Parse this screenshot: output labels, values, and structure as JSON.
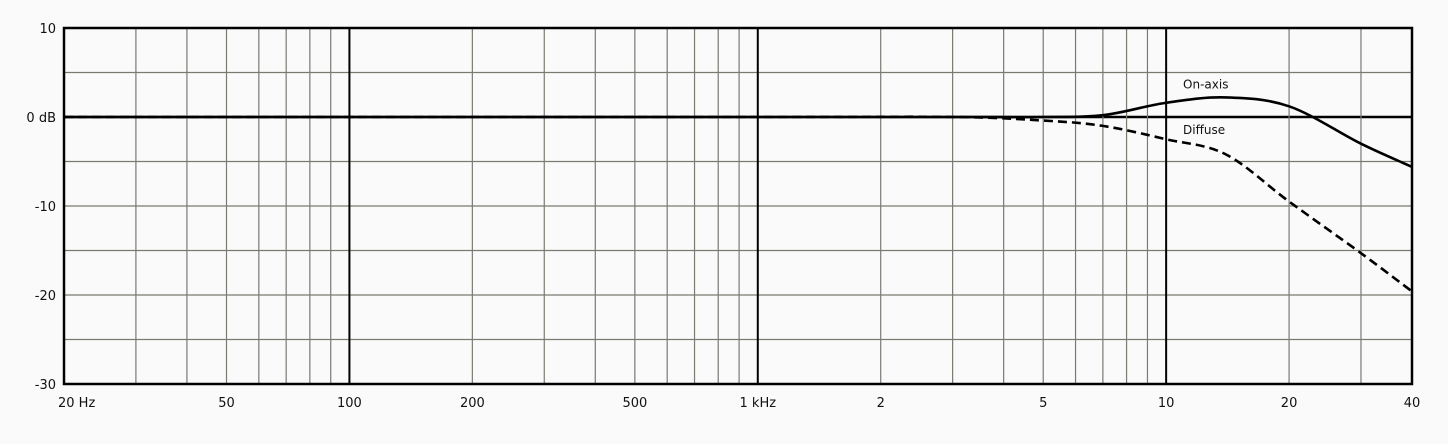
{
  "chart_data": {
    "type": "line",
    "title": "",
    "xlabel": "",
    "ylabel": "",
    "x_scale": "log",
    "xlim": [
      20,
      40000
    ],
    "ylim": [
      -30,
      10
    ],
    "grid": true,
    "x_ticks": [
      {
        "value": 20,
        "label": "20 Hz"
      },
      {
        "value": 50,
        "label": "50"
      },
      {
        "value": 100,
        "label": "100"
      },
      {
        "value": 200,
        "label": "200"
      },
      {
        "value": 500,
        "label": "500"
      },
      {
        "value": 1000,
        "label": "1 kHz"
      },
      {
        "value": 2000,
        "label": "2"
      },
      {
        "value": 5000,
        "label": "5"
      },
      {
        "value": 10000,
        "label": "10"
      },
      {
        "value": 20000,
        "label": "20"
      },
      {
        "value": 40000,
        "label": "40"
      }
    ],
    "y_ticks": [
      {
        "value": 10,
        "label": "10"
      },
      {
        "value": 0,
        "label": "0 dB"
      },
      {
        "value": -10,
        "label": "-10"
      },
      {
        "value": -20,
        "label": "-20"
      },
      {
        "value": -30,
        "label": "-30"
      }
    ],
    "series": [
      {
        "name": "On-axis",
        "style": "solid",
        "x": [
          20,
          1000,
          3000,
          5000,
          7000,
          10000,
          14000,
          20000,
          30000,
          40000
        ],
        "y": [
          0,
          0,
          0,
          0,
          0.2,
          1.6,
          2.2,
          1.2,
          -3.0,
          -5.6
        ]
      },
      {
        "name": "Diffuse",
        "style": "dashed",
        "x": [
          20,
          1000,
          3000,
          5000,
          7000,
          10000,
          14000,
          20000,
          30000,
          40000
        ],
        "y": [
          0,
          0,
          0,
          -0.4,
          -1.0,
          -2.5,
          -4.2,
          -9.5,
          -15.3,
          -19.6
        ]
      }
    ],
    "colors": {
      "line": "#000000",
      "grid": "#7a7a72",
      "background": "#fafafa"
    }
  }
}
